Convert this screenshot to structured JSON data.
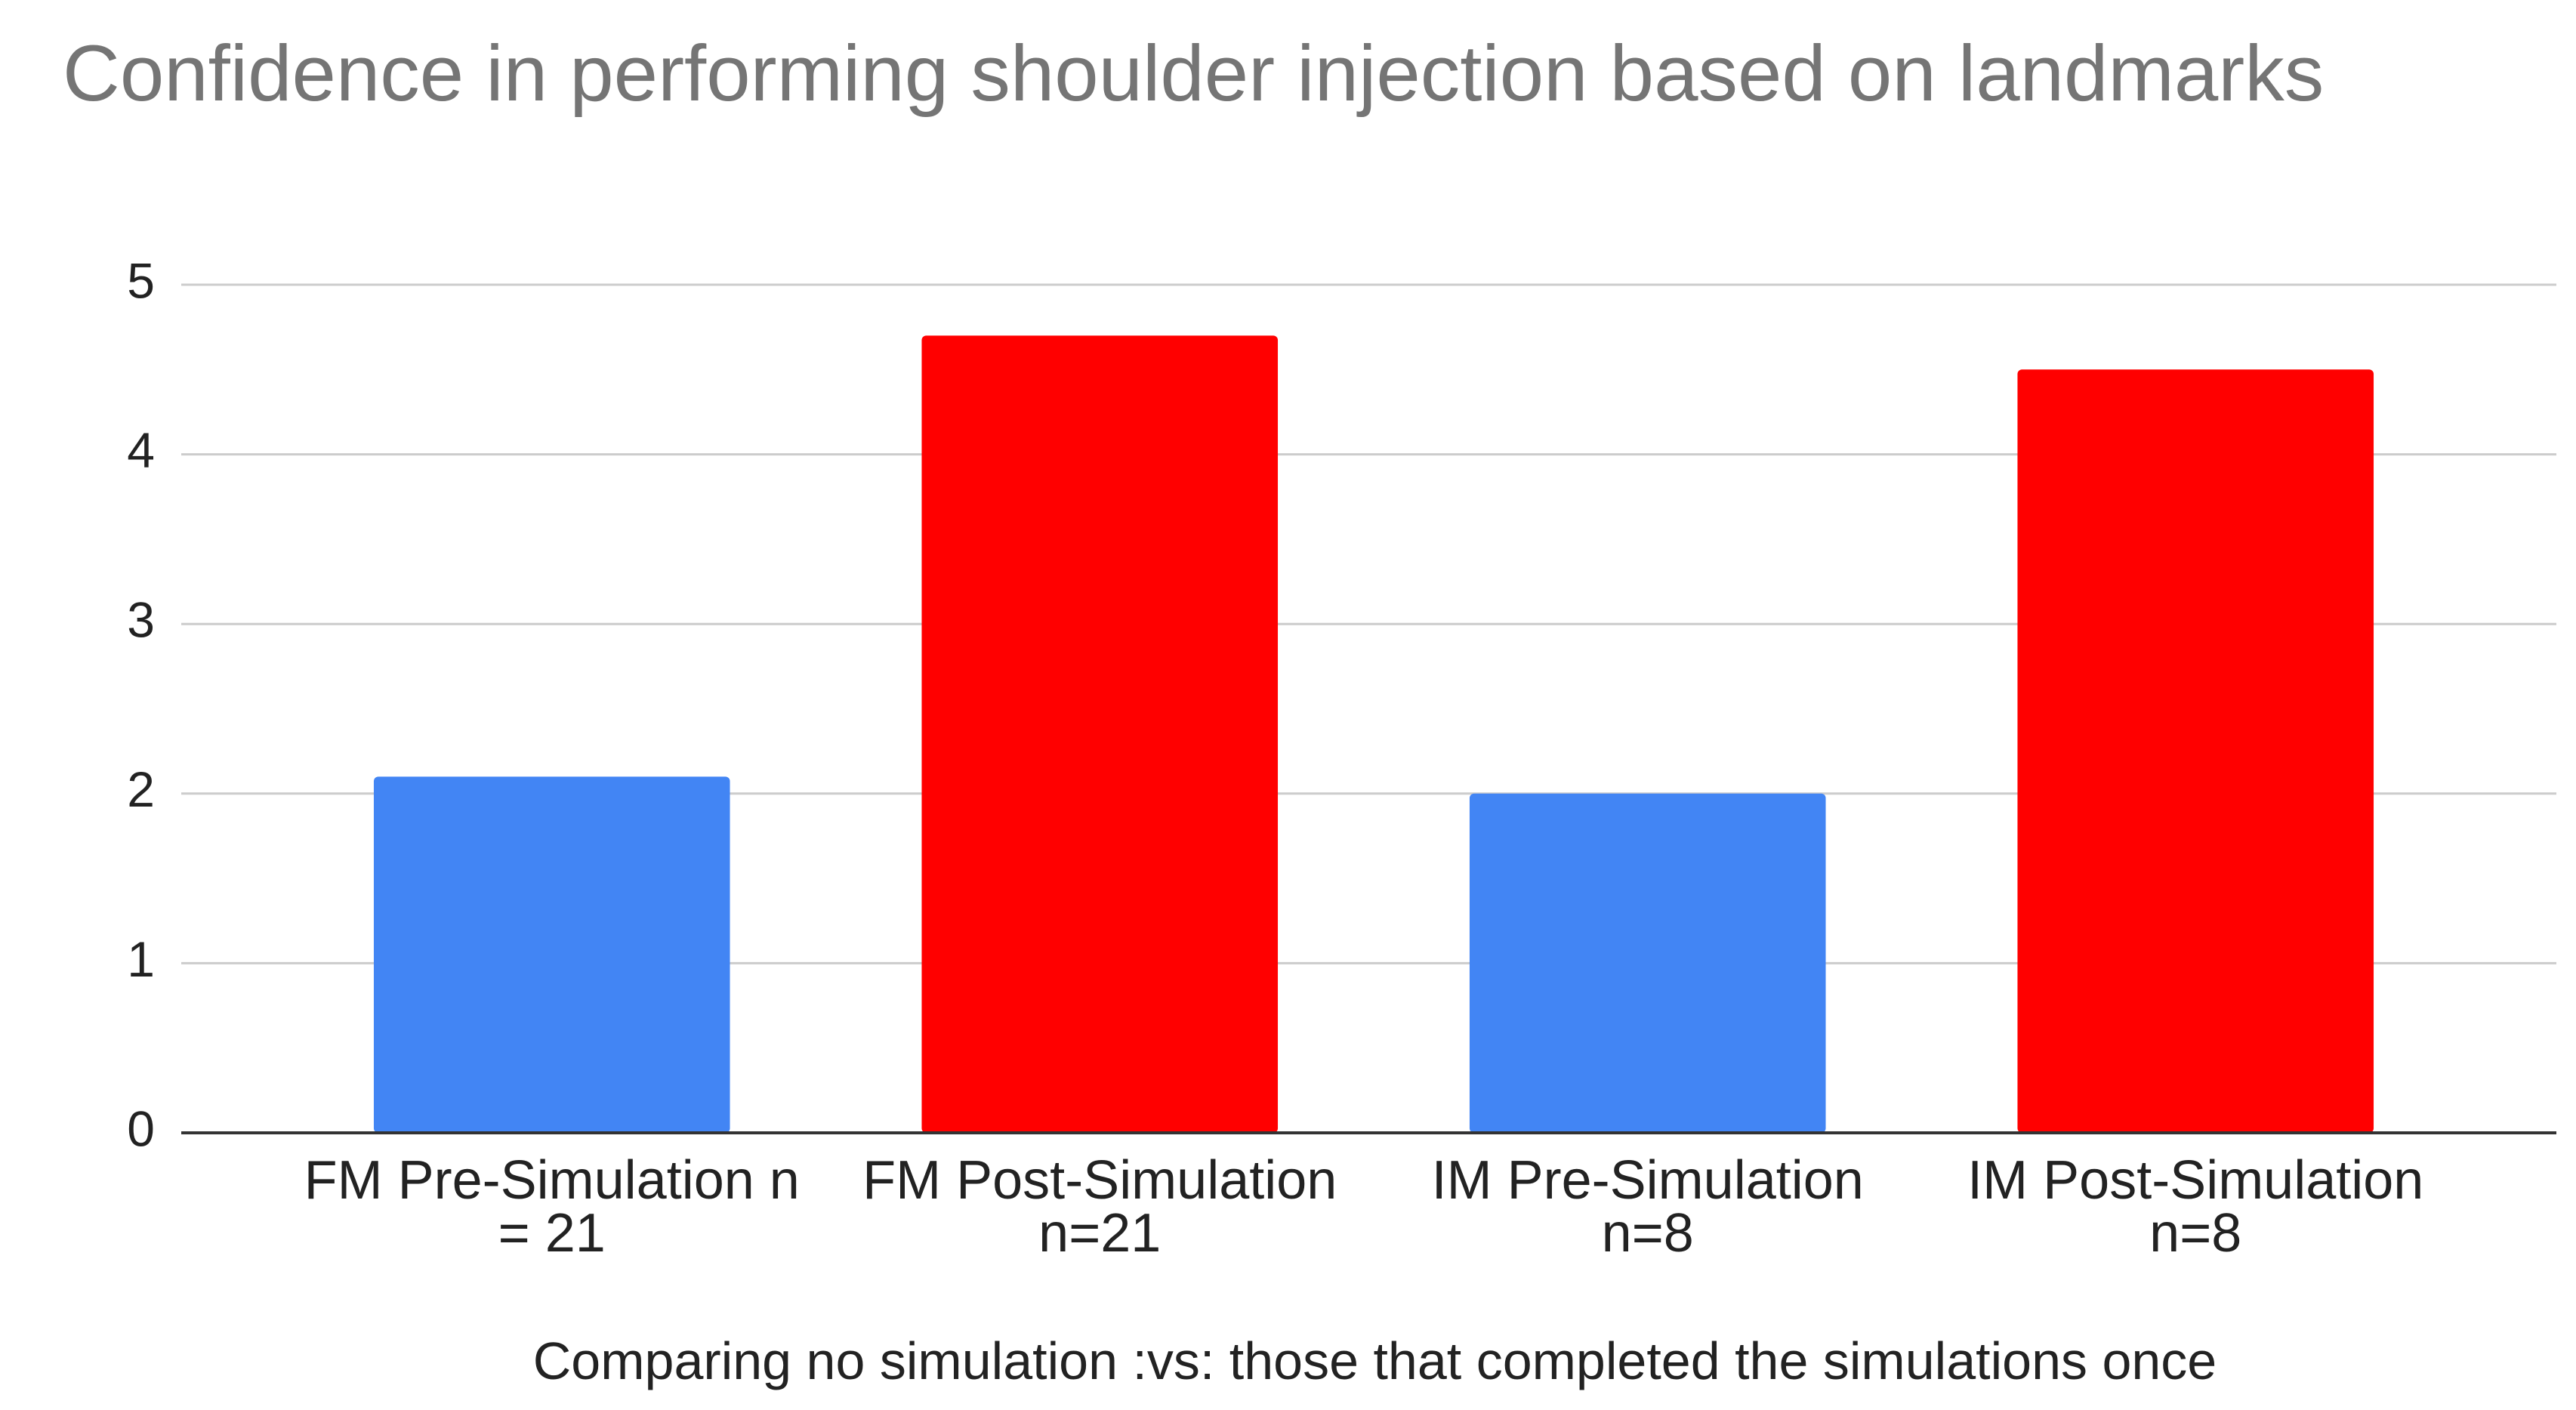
{
  "chart_data": {
    "type": "bar",
    "title": "Confidence in performing shoulder injection based on landmarks",
    "x_label": "Comparing no simulation :vs: those that completed the simulations once",
    "categories": [
      "FM Pre-Simulation n = 21",
      "FM Post-Simulation n=21",
      "IM Pre-Simulation n=8",
      "IM Post-Simulation n=8"
    ],
    "values": [
      2.1,
      4.7,
      2.0,
      4.5
    ],
    "colors": [
      "#4285f4",
      "#ff0000",
      "#4285f4",
      "#ff0000"
    ],
    "ylim": [
      0,
      5
    ],
    "yticks": [
      0,
      1,
      2,
      3,
      4,
      5
    ],
    "grid": true
  }
}
